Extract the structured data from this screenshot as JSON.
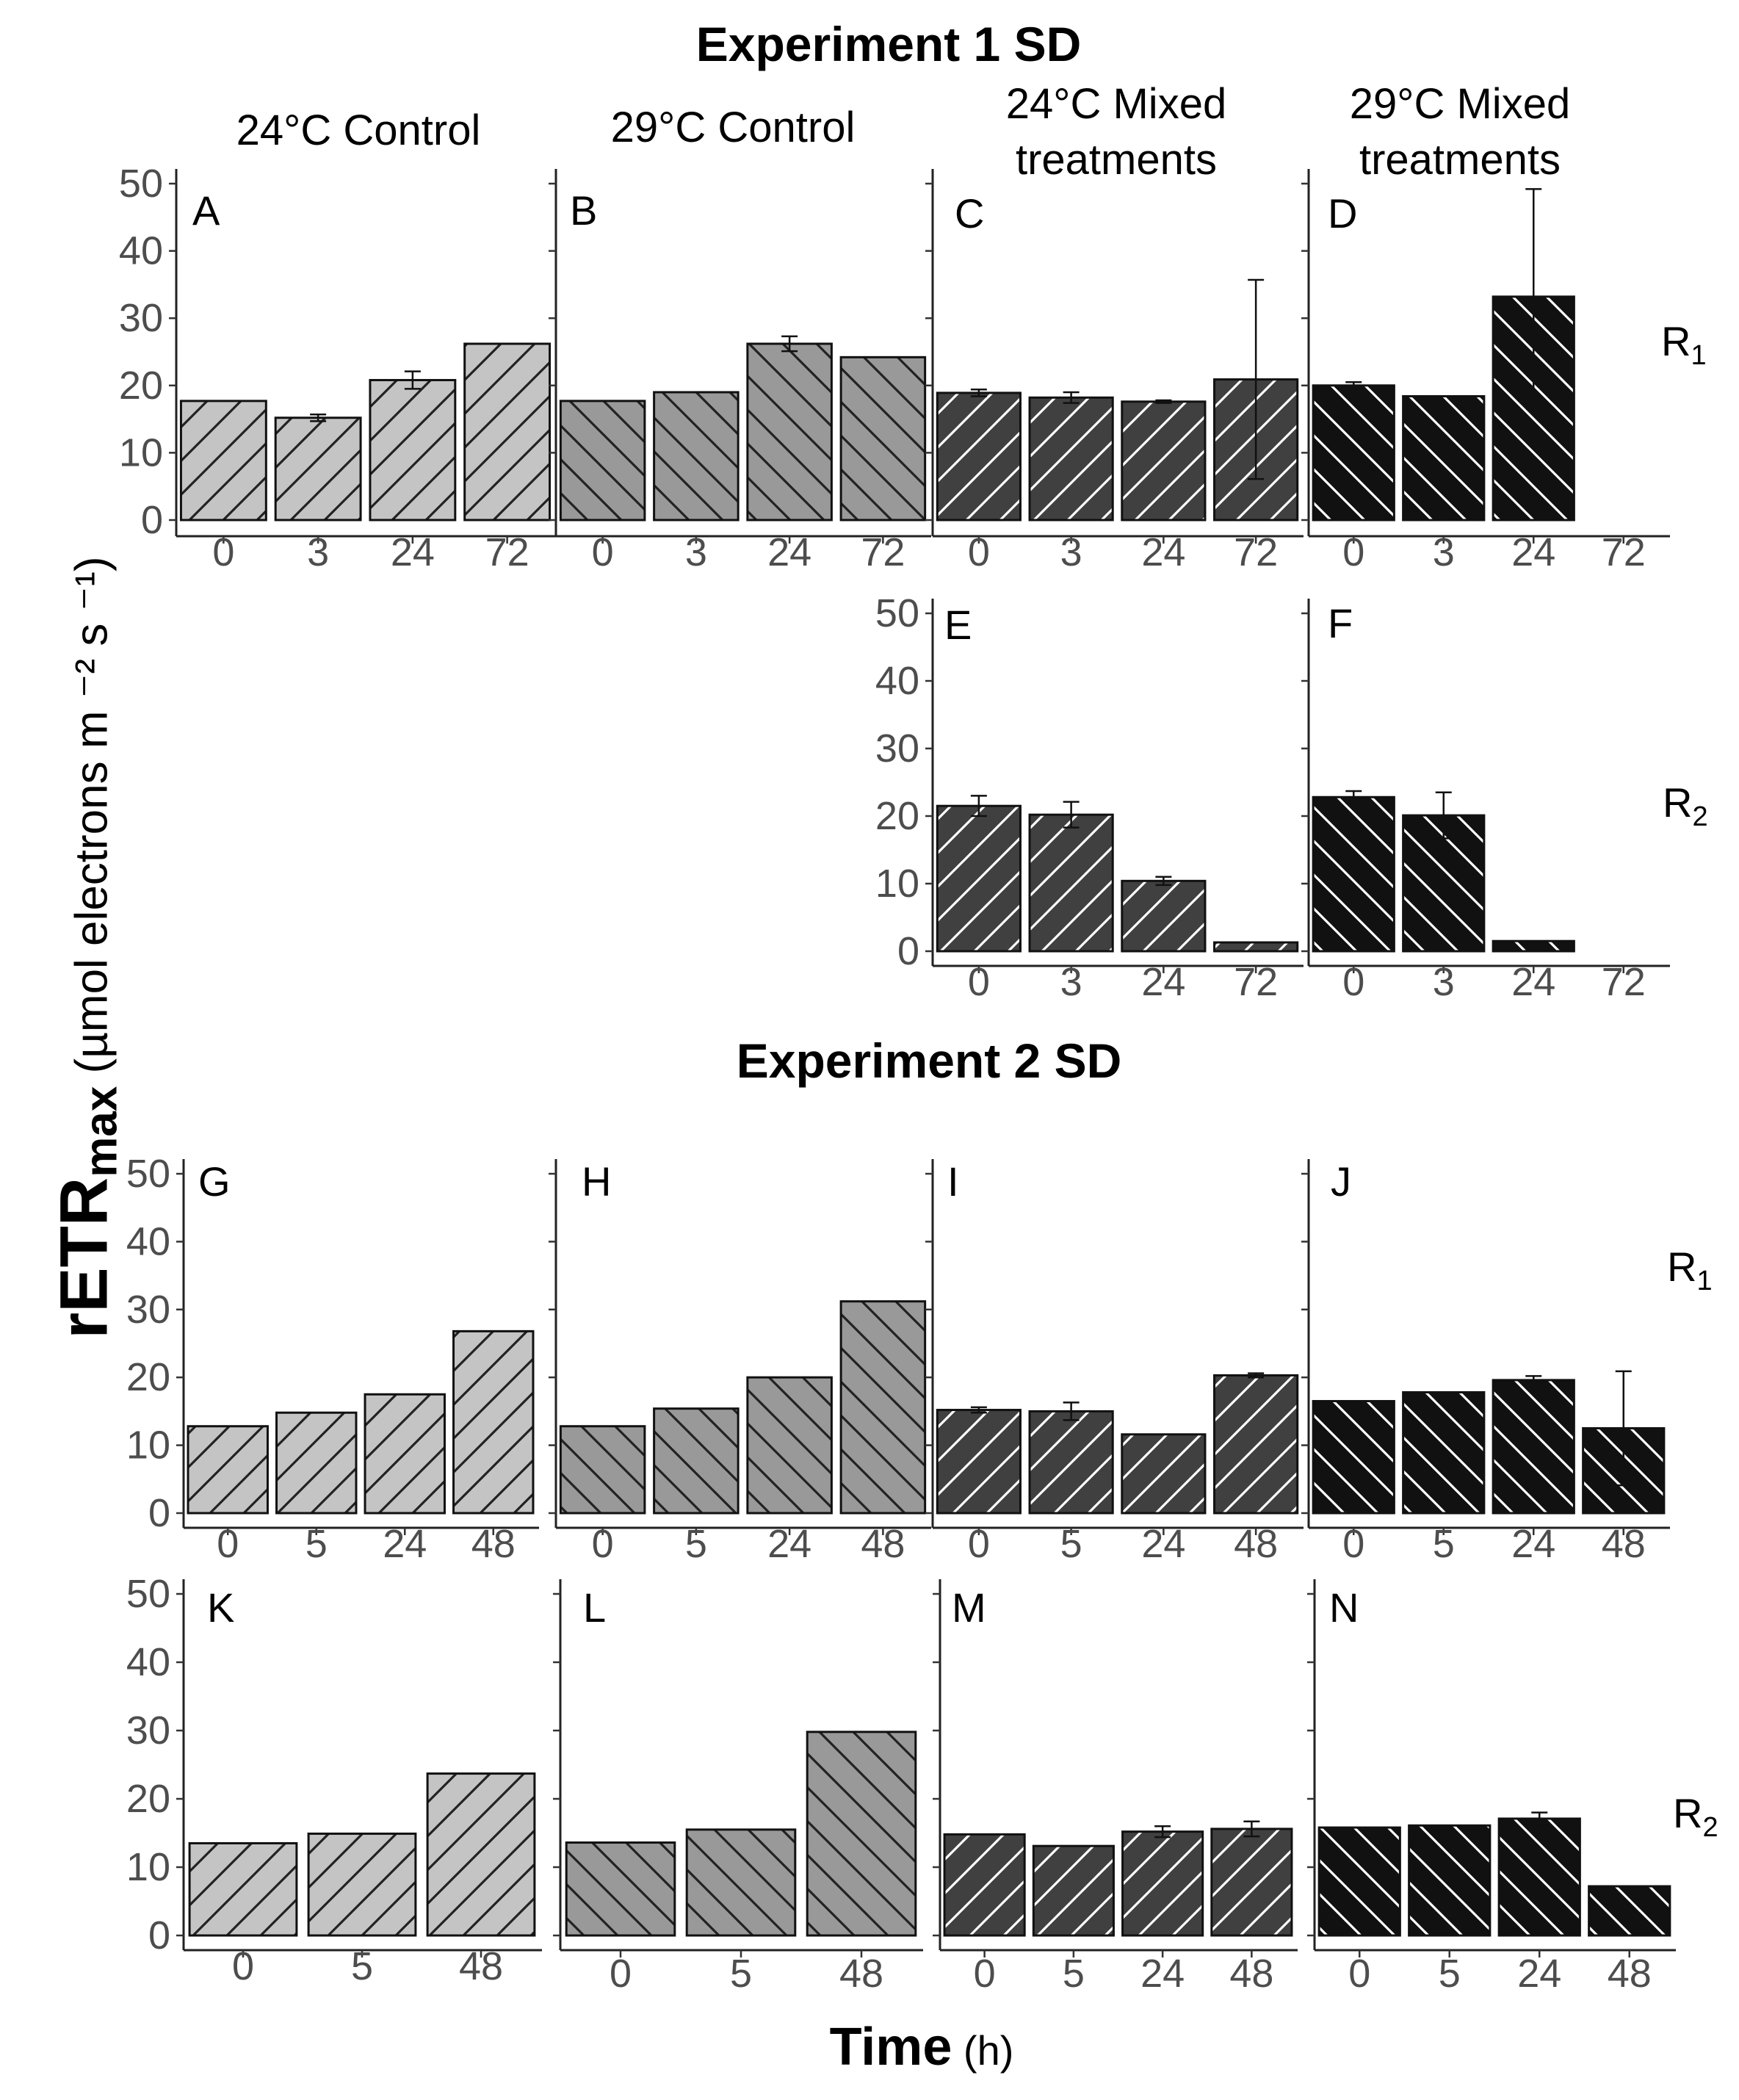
{
  "figure": {
    "exp1_title": "Experiment 1 SD",
    "exp2_title": "Experiment 2 SD",
    "column_titles": [
      "24°C Control",
      "29°C Control",
      "24°C Mixed\ntreatments",
      "29°C Mixed\ntreatments"
    ],
    "row_labels": {
      "R1": "R",
      "R1_sub": "1",
      "R2": "R",
      "R2_sub": "2"
    },
    "ylabel_main": "rETR",
    "ylabel_sub": "max",
    "ylabel_units": " (µmol electrons m ⁻² s ⁻¹)",
    "xlabel_main": "Time",
    "xlabel_units": " (h)",
    "colors": {
      "light": "#c4c4c4",
      "medium": "#999999",
      "dark": "#404040",
      "black": "#111111"
    }
  },
  "chart_data": [
    {
      "panel": "A",
      "type": "bar",
      "group": "24°C Control",
      "replicate": "R1",
      "categories": [
        "0",
        "3",
        "24",
        "72"
      ],
      "values": [
        17.7,
        15.2,
        20.8,
        26.2
      ],
      "errors": [
        0,
        0.5,
        1.3,
        0
      ],
      "ylim": [
        0,
        50
      ],
      "yticks": [
        0,
        10,
        20,
        30,
        40,
        50
      ],
      "fill": "light",
      "hatch": "up",
      "hatch_color": "#222222"
    },
    {
      "panel": "B",
      "type": "bar",
      "group": "29°C Control",
      "replicate": "R1",
      "categories": [
        "0",
        "3",
        "24",
        "72"
      ],
      "values": [
        17.7,
        19.0,
        26.2,
        24.2
      ],
      "errors": [
        0,
        0,
        1.1,
        0
      ],
      "ylim": [
        0,
        50
      ],
      "yticks": [
        0,
        10,
        20,
        30,
        40,
        50
      ],
      "fill": "medium",
      "hatch": "down",
      "hatch_color": "#222222"
    },
    {
      "panel": "C",
      "type": "bar",
      "group": "24°C Mixed treatments",
      "replicate": "R1",
      "categories": [
        "0",
        "3",
        "24",
        "72"
      ],
      "values": [
        18.9,
        18.2,
        17.6,
        20.9
      ],
      "errors": [
        0.5,
        0.8,
        0.2,
        14.8
      ],
      "ylim": [
        0,
        50
      ],
      "yticks": [
        0,
        10,
        20,
        30,
        40,
        50
      ],
      "fill": "dark",
      "hatch": "up",
      "hatch_color": "#ffffff"
    },
    {
      "panel": "D",
      "type": "bar",
      "group": "29°C Mixed treatments",
      "replicate": "R1",
      "categories": [
        "0",
        "3",
        "24",
        "72"
      ],
      "values": [
        20.0,
        18.4,
        33.2,
        null
      ],
      "errors": [
        0.5,
        0,
        16.0,
        0
      ],
      "ylim": [
        0,
        50
      ],
      "yticks": [
        0,
        10,
        20,
        30,
        40,
        50
      ],
      "fill": "black",
      "hatch": "down",
      "hatch_color": "#ffffff"
    },
    {
      "panel": "E",
      "type": "bar",
      "group": "24°C Mixed treatments",
      "replicate": "R2",
      "categories": [
        "0",
        "3",
        "24",
        "72"
      ],
      "values": [
        21.5,
        20.2,
        10.4,
        1.3
      ],
      "errors": [
        1.5,
        1.9,
        0.6,
        0
      ],
      "ylim": [
        0,
        50
      ],
      "yticks": [
        0,
        10,
        20,
        30,
        40,
        50
      ],
      "fill": "dark",
      "hatch": "up",
      "hatch_color": "#ffffff"
    },
    {
      "panel": "F",
      "type": "bar",
      "group": "29°C Mixed treatments",
      "replicate": "R2",
      "categories": [
        "0",
        "3",
        "24",
        "72"
      ],
      "values": [
        22.8,
        20.1,
        1.5,
        null
      ],
      "errors": [
        0.9,
        3.4,
        0,
        0
      ],
      "ylim": [
        0,
        50
      ],
      "yticks": [
        0,
        10,
        20,
        30,
        40,
        50
      ],
      "fill": "black",
      "hatch": "down",
      "hatch_color": "#ffffff"
    },
    {
      "panel": "G",
      "type": "bar",
      "group": "24°C Control",
      "replicate": "R1",
      "categories": [
        "0",
        "5",
        "24",
        "48"
      ],
      "values": [
        12.8,
        14.8,
        17.5,
        26.8
      ],
      "errors": [
        0,
        0,
        0,
        0
      ],
      "ylim": [
        0,
        50
      ],
      "yticks": [
        0,
        10,
        20,
        30,
        40,
        50
      ],
      "fill": "light",
      "hatch": "up",
      "hatch_color": "#222222"
    },
    {
      "panel": "H",
      "type": "bar",
      "group": "29°C Control",
      "replicate": "R1",
      "categories": [
        "0",
        "5",
        "24",
        "48"
      ],
      "values": [
        12.8,
        15.4,
        20.0,
        31.2
      ],
      "errors": [
        0,
        0,
        0,
        0
      ],
      "ylim": [
        0,
        50
      ],
      "yticks": [
        0,
        10,
        20,
        30,
        40,
        50
      ],
      "fill": "medium",
      "hatch": "down",
      "hatch_color": "#222222"
    },
    {
      "panel": "I",
      "type": "bar",
      "group": "24°C Mixed treatments",
      "replicate": "R1",
      "categories": [
        "0",
        "5",
        "24",
        "48"
      ],
      "values": [
        15.2,
        15.0,
        11.6,
        20.3
      ],
      "errors": [
        0.4,
        1.3,
        0,
        0.3
      ],
      "ylim": [
        0,
        50
      ],
      "yticks": [
        0,
        10,
        20,
        30,
        40,
        50
      ],
      "fill": "dark",
      "hatch": "up",
      "hatch_color": "#ffffff"
    },
    {
      "panel": "J",
      "type": "bar",
      "group": "29°C Mixed treatments",
      "replicate": "R1",
      "categories": [
        "0",
        "5",
        "24",
        "48"
      ],
      "values": [
        16.5,
        17.8,
        19.6,
        12.5
      ],
      "errors": [
        0,
        0,
        0.6,
        8.4
      ],
      "ylim": [
        0,
        50
      ],
      "yticks": [
        0,
        10,
        20,
        30,
        40,
        50
      ],
      "fill": "black",
      "hatch": "down",
      "hatch_color": "#ffffff"
    },
    {
      "panel": "K",
      "type": "bar",
      "group": "24°C Control",
      "replicate": "R2",
      "categories": [
        "0",
        "5",
        "48"
      ],
      "values": [
        13.5,
        14.9,
        23.7
      ],
      "errors": [
        0,
        0,
        0
      ],
      "ylim": [
        0,
        50
      ],
      "yticks": [
        0,
        10,
        20,
        30,
        40,
        50
      ],
      "fill": "light",
      "hatch": "up",
      "hatch_color": "#222222"
    },
    {
      "panel": "L",
      "type": "bar",
      "group": "29°C Control",
      "replicate": "R2",
      "categories": [
        "0",
        "5",
        "48"
      ],
      "values": [
        13.6,
        15.5,
        29.8
      ],
      "errors": [
        0,
        0,
        0
      ],
      "ylim": [
        0,
        50
      ],
      "yticks": [
        0,
        10,
        20,
        30,
        40,
        50
      ],
      "fill": "medium",
      "hatch": "down",
      "hatch_color": "#222222"
    },
    {
      "panel": "M",
      "type": "bar",
      "group": "24°C Mixed treatments",
      "replicate": "R2",
      "categories": [
        "0",
        "5",
        "24",
        "48"
      ],
      "values": [
        14.8,
        13.1,
        15.2,
        15.6
      ],
      "errors": [
        0,
        0,
        0.8,
        1.1
      ],
      "ylim": [
        0,
        50
      ],
      "yticks": [
        0,
        10,
        20,
        30,
        40,
        50
      ],
      "fill": "dark",
      "hatch": "up",
      "hatch_color": "#ffffff"
    },
    {
      "panel": "N",
      "type": "bar",
      "group": "29°C Mixed treatments",
      "replicate": "R2",
      "categories": [
        "0",
        "5",
        "24",
        "48"
      ],
      "values": [
        15.8,
        16.1,
        17.1,
        7.2
      ],
      "errors": [
        0,
        0,
        0.9,
        0
      ],
      "ylim": [
        0,
        50
      ],
      "yticks": [
        0,
        10,
        20,
        30,
        40,
        50
      ],
      "fill": "black",
      "hatch": "down",
      "hatch_color": "#ffffff"
    }
  ]
}
